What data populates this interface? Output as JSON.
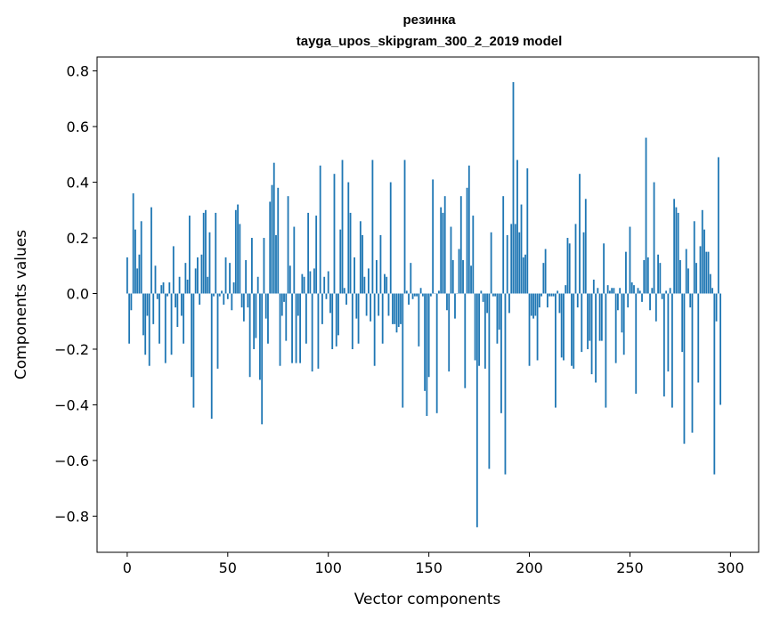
{
  "chart_data": {
    "type": "bar",
    "title": "резинка",
    "subtitle": "tayga_upos_skipgram_300_2_2019 model",
    "xlabel": "Vector components",
    "ylabel": "Components values",
    "xlim": [
      -15,
      314
    ],
    "ylim": [
      -0.93,
      0.85
    ],
    "xticks": [
      0,
      50,
      100,
      150,
      200,
      250,
      300
    ],
    "xtick_labels": [
      "0",
      "50",
      "100",
      "150",
      "200",
      "250",
      "300"
    ],
    "yticks": [
      -0.8,
      -0.6,
      -0.4,
      -0.2,
      0.0,
      0.2,
      0.4,
      0.6,
      0.8
    ],
    "ytick_labels": [
      "−0.8",
      "−0.6",
      "−0.4",
      "−0.2",
      "0.0",
      "0.2",
      "0.4",
      "0.6",
      "0.8"
    ],
    "bar_color": "#1f77b4",
    "grid": false,
    "values": [
      0.13,
      -0.18,
      -0.06,
      0.36,
      0.23,
      0.09,
      0.14,
      0.26,
      -0.15,
      -0.22,
      -0.08,
      -0.26,
      0.31,
      -0.11,
      0.1,
      -0.02,
      -0.18,
      0.03,
      0.04,
      -0.25,
      -0.01,
      0.04,
      -0.22,
      0.17,
      -0.05,
      -0.12,
      0.06,
      -0.08,
      -0.18,
      0.11,
      0.05,
      0.28,
      -0.3,
      -0.41,
      0.09,
      0.13,
      -0.04,
      0.14,
      0.29,
      0.3,
      0.06,
      0.22,
      -0.45,
      -0.01,
      0.29,
      -0.27,
      -0.01,
      0.01,
      -0.04,
      0.13,
      -0.02,
      0.11,
      -0.06,
      0.04,
      0.3,
      0.32,
      0.25,
      -0.05,
      -0.1,
      0.12,
      -0.05,
      -0.3,
      0.2,
      -0.2,
      -0.16,
      0.06,
      -0.31,
      -0.47,
      0.2,
      -0.09,
      -0.18,
      0.33,
      0.39,
      0.47,
      0.21,
      0.38,
      -0.26,
      -0.08,
      -0.03,
      -0.17,
      0.35,
      0.1,
      -0.25,
      0.24,
      -0.25,
      -0.08,
      -0.25,
      0.07,
      0.06,
      -0.18,
      0.29,
      0.08,
      -0.28,
      0.09,
      0.28,
      -0.27,
      0.46,
      -0.11,
      0.06,
      -0.02,
      0.08,
      -0.07,
      -0.2,
      0.43,
      -0.19,
      -0.15,
      0.23,
      0.48,
      0.02,
      -0.04,
      0.4,
      0.29,
      -0.2,
      0.13,
      -0.09,
      -0.18,
      0.26,
      0.21,
      0.06,
      -0.08,
      0.09,
      -0.1,
      0.48,
      -0.26,
      0.12,
      -0.08,
      0.21,
      -0.18,
      0.07,
      0.06,
      -0.08,
      0.4,
      -0.11,
      -0.11,
      -0.14,
      -0.12,
      -0.11,
      -0.41,
      0.48,
      0.01,
      -0.04,
      0.11,
      -0.02,
      -0.01,
      -0.01,
      -0.19,
      0.02,
      -0.01,
      -0.35,
      -0.44,
      -0.3,
      -0.01,
      0.41,
      0.0,
      -0.43,
      0.01,
      0.31,
      0.29,
      0.35,
      -0.06,
      -0.28,
      0.24,
      0.12,
      -0.09,
      0.0,
      0.16,
      0.35,
      0.12,
      -0.34,
      0.38,
      0.46,
      0.1,
      0.28,
      -0.24,
      -0.84,
      -0.26,
      0.01,
      -0.03,
      -0.27,
      -0.07,
      -0.63,
      0.22,
      -0.01,
      -0.01,
      -0.18,
      -0.13,
      -0.43,
      0.35,
      -0.65,
      0.21,
      -0.07,
      0.25,
      0.76,
      0.25,
      0.48,
      0.22,
      0.32,
      0.13,
      0.14,
      0.45,
      -0.26,
      -0.08,
      -0.09,
      -0.08,
      -0.24,
      -0.05,
      -0.01,
      0.11,
      0.16,
      -0.05,
      -0.01,
      -0.01,
      -0.01,
      -0.41,
      0.01,
      -0.07,
      -0.23,
      -0.24,
      0.03,
      0.2,
      0.18,
      -0.26,
      -0.27,
      0.25,
      -0.05,
      0.43,
      -0.21,
      0.22,
      0.34,
      -0.2,
      -0.17,
      -0.29,
      0.05,
      -0.32,
      0.02,
      -0.17,
      -0.17,
      0.18,
      -0.41,
      0.03,
      0.01,
      0.02,
      0.02,
      -0.25,
      -0.06,
      0.02,
      -0.14,
      -0.22,
      0.15,
      -0.05,
      0.24,
      0.04,
      0.03,
      -0.36,
      0.02,
      0.01,
      -0.03,
      0.12,
      0.56,
      0.13,
      -0.06,
      0.02,
      0.4,
      -0.1,
      0.14,
      0.11,
      -0.02,
      -0.37,
      0.01,
      -0.28,
      0.02,
      -0.41,
      0.34,
      0.31,
      0.29,
      0.12,
      -0.21,
      -0.54,
      0.16,
      0.09,
      -0.05,
      -0.5,
      0.26,
      0.11,
      -0.32,
      0.17,
      0.3,
      0.23,
      0.15,
      0.15,
      0.07,
      0.02,
      -0.65,
      -0.1,
      0.49,
      -0.4
    ]
  }
}
